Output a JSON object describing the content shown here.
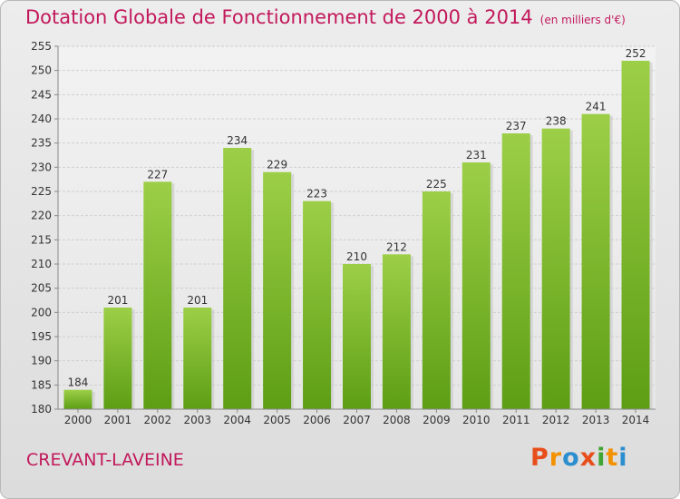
{
  "header": {
    "title": "Dotation Globale de Fonctionnement de 2000 à 2014",
    "subtitle": "(en milliers d'€)"
  },
  "footer": {
    "commune": "CREVANT-LAVEINE",
    "logo_text": "Proxiti"
  },
  "colors": {
    "accent": "#c2185b",
    "bar_light": "#9ccf47",
    "bar_dark": "#5d9e14",
    "logo_letters": [
      "#e84e1b",
      "#f39200",
      "#2b8ecf",
      "#e84e1b",
      "#3fa535",
      "#f39200",
      "#2b8ecf"
    ]
  },
  "chart_data": {
    "type": "bar",
    "categories": [
      "2000",
      "2001",
      "2002",
      "2003",
      "2004",
      "2005",
      "2006",
      "2007",
      "2008",
      "2009",
      "2010",
      "2011",
      "2012",
      "2013",
      "2014"
    ],
    "values": [
      184,
      201,
      227,
      201,
      234,
      229,
      223,
      210,
      212,
      225,
      231,
      237,
      238,
      241,
      252
    ],
    "ylim": [
      180,
      255
    ],
    "yticks": [
      180,
      185,
      190,
      195,
      200,
      205,
      210,
      215,
      220,
      225,
      230,
      235,
      240,
      245,
      250,
      255
    ],
    "grid": true,
    "data_labels": true
  }
}
